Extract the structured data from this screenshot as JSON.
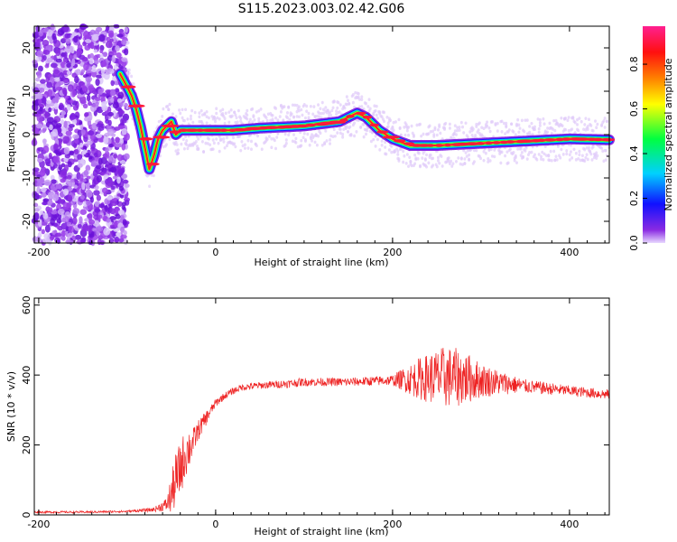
{
  "chart_data": [
    {
      "type": "heatmap",
      "title": "S115.2023.003.02.42.G06",
      "xlabel": "Height of straight line (km)",
      "ylabel": "Frequency (Hz)",
      "xlim": [
        -205,
        445
      ],
      "ylim": [
        -25,
        25
      ],
      "xticks": [
        -200,
        0,
        200,
        400
      ],
      "yticks": [
        -20,
        -10,
        0,
        10,
        20
      ],
      "colorbar": {
        "label": "Normalized spectral amplitude",
        "ticks": [
          0.0,
          0.2,
          0.4,
          0.6,
          0.8
        ],
        "range": [
          0,
          0.97
        ],
        "colormap": "rainbow (violet-blue-cyan-green-yellow-orange-red-magenta)"
      },
      "ridge": {
        "x": [
          -108,
          -100,
          -95,
          -90,
          -85,
          -80,
          -75,
          -70,
          -65,
          -60,
          -55,
          -50,
          -45,
          -40,
          -30,
          0,
          20,
          50,
          100,
          140,
          150,
          160,
          170,
          185,
          200,
          220,
          250,
          300,
          350,
          400,
          445
        ],
        "y": [
          14,
          11,
          9,
          6,
          2,
          -3,
          -8,
          -5,
          -1,
          1,
          2,
          3,
          0,
          1,
          1,
          1,
          1,
          1.5,
          2,
          3,
          4,
          5,
          4,
          1,
          -1,
          -2.5,
          -2.5,
          -2,
          -1.5,
          -1,
          -1.2
        ]
      }
    },
    {
      "type": "line",
      "xlabel": "Height of straight line (km)",
      "ylabel": "SNR (10 * v/v)",
      "xlim": [
        -205,
        445
      ],
      "ylim": [
        0,
        620
      ],
      "xticks": [
        -200,
        0,
        200,
        400
      ],
      "yticks": [
        0,
        200,
        400,
        600
      ],
      "color": "#ee2222",
      "series": [
        {
          "x": [
            -205,
            -150,
            -100,
            -70,
            -55,
            -50,
            -45,
            -40,
            -35,
            -30,
            -25,
            -20,
            -15,
            -10,
            -5,
            0,
            10,
            20,
            30,
            50,
            80,
            100,
            150,
            200,
            230,
            260,
            280,
            300,
            330,
            350,
            400,
            440
          ],
          "y": [
            8,
            8,
            10,
            15,
            30,
            60,
            100,
            130,
            170,
            190,
            210,
            240,
            260,
            280,
            300,
            320,
            340,
            355,
            365,
            370,
            375,
            380,
            380,
            385,
            390,
            395,
            392,
            385,
            375,
            368,
            355,
            345
          ],
          "noise": [
            3,
            3,
            3,
            6,
            20,
            60,
            80,
            80,
            70,
            60,
            40,
            30,
            25,
            20,
            15,
            12,
            10,
            10,
            10,
            10,
            12,
            12,
            12,
            15,
            60,
            90,
            80,
            50,
            30,
            20,
            15,
            15
          ]
        }
      ]
    }
  ]
}
